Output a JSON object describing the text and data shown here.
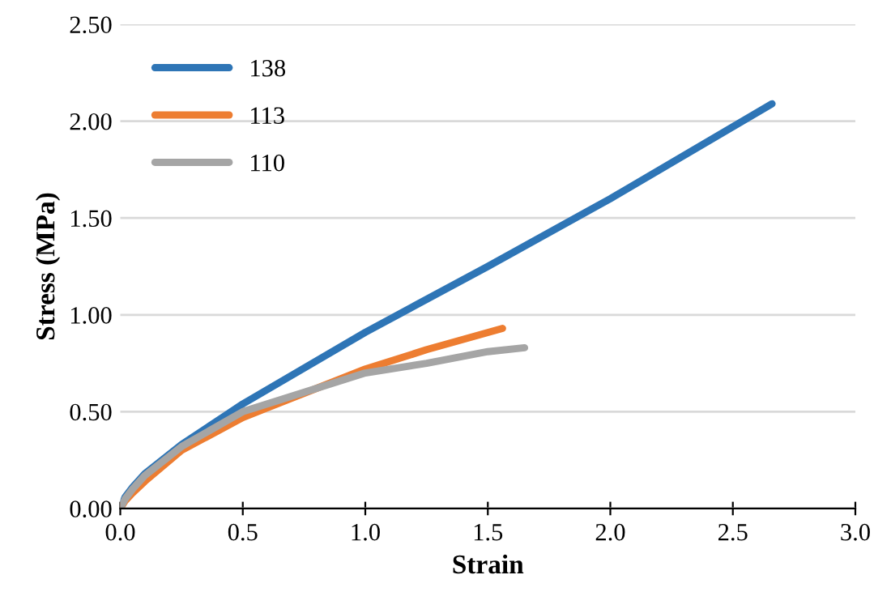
{
  "chart_data": {
    "type": "line",
    "xlabel": "Strain",
    "ylabel": "Stress (MPa)",
    "xlim": [
      0,
      3
    ],
    "xticks": [
      {
        "value": 0,
        "label": "0.0"
      },
      {
        "value": 0.5,
        "label": "0.5"
      },
      {
        "value": 1,
        "label": "1.0"
      },
      {
        "value": 1.5,
        "label": "1.5"
      },
      {
        "value": 2,
        "label": "2.0"
      },
      {
        "value": 2.5,
        "label": "2.5"
      },
      {
        "value": 3,
        "label": "3.0"
      }
    ],
    "ylim": [
      0,
      2.5
    ],
    "yticks": [
      {
        "value": 0,
        "label": "0.00"
      },
      {
        "value": 0.5,
        "label": "0.50"
      },
      {
        "value": 1,
        "label": "1.00"
      },
      {
        "value": 1.5,
        "label": "1.50"
      },
      {
        "value": 2,
        "label": "2.00"
      },
      {
        "value": 2.5,
        "label": "2.50"
      }
    ],
    "grid": "y",
    "legend": "top left",
    "marker": "none",
    "line_style": "solid",
    "series": [
      {
        "name": "138",
        "color": "#2e75b6",
        "x": [
          0,
          0.02,
          0.05,
          0.1,
          0.25,
          0.5,
          1.0,
          1.5,
          2.0,
          2.66
        ],
        "values": [
          0,
          0.06,
          0.11,
          0.18,
          0.33,
          0.54,
          0.91,
          1.25,
          1.6,
          2.09
        ]
      },
      {
        "name": "113",
        "color": "#ed7d31",
        "x": [
          0,
          0.02,
          0.05,
          0.1,
          0.25,
          0.5,
          1.0,
          1.25,
          1.56
        ],
        "values": [
          0,
          0.04,
          0.08,
          0.14,
          0.3,
          0.47,
          0.72,
          0.82,
          0.93
        ]
      },
      {
        "name": "110",
        "color": "#a5a5a5",
        "x": [
          0,
          0.02,
          0.05,
          0.1,
          0.25,
          0.5,
          1.0,
          1.25,
          1.5,
          1.65
        ],
        "values": [
          0,
          0.05,
          0.1,
          0.17,
          0.32,
          0.5,
          0.7,
          0.75,
          0.81,
          0.83
        ]
      }
    ]
  }
}
